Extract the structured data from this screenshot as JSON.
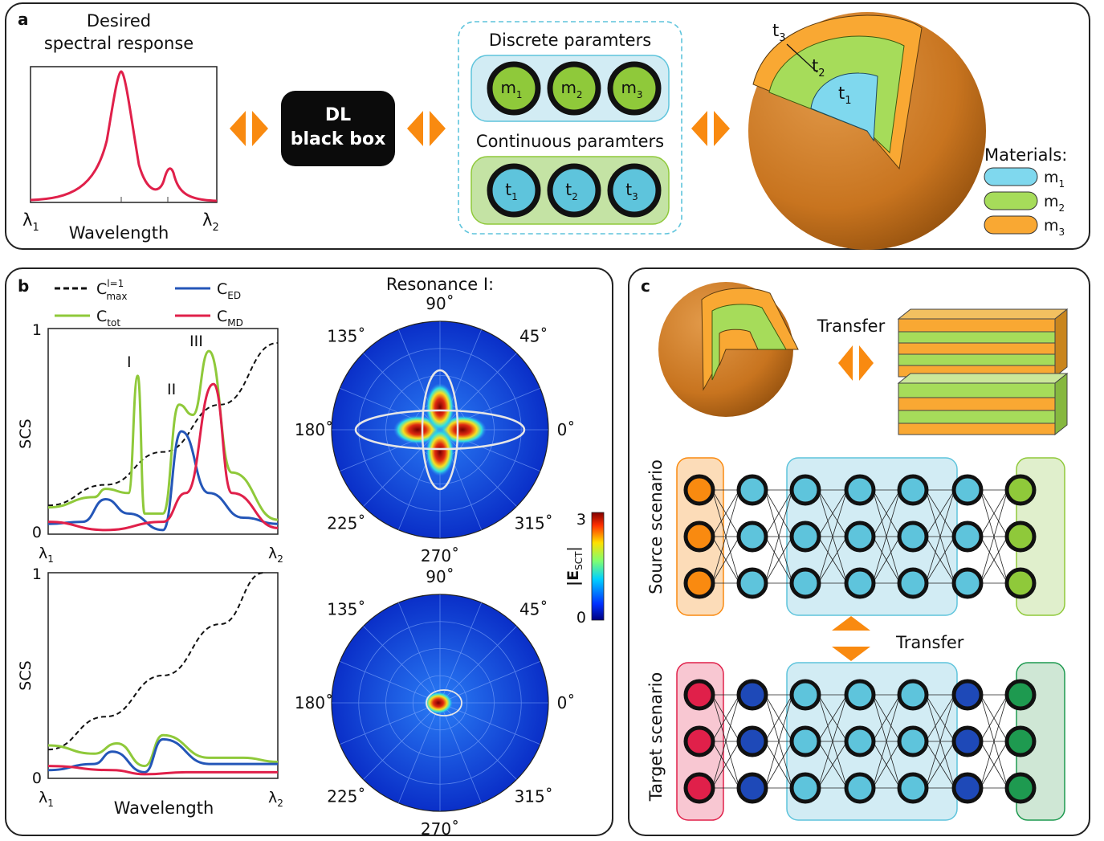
{
  "panel_a": {
    "letter": "a",
    "desired_title_1": "Desired",
    "desired_title_2": "spectral response",
    "xlabel": "Wavelength",
    "lambda_start": "λ",
    "lambda_start_sub": "1",
    "lambda_end": "λ",
    "lambda_end_sub": "2",
    "blackbox_line1": "DL",
    "blackbox_line2": "black box",
    "discrete_title": "Discrete paramters",
    "continuous_title": "Continuous paramters",
    "discrete_params": [
      {
        "base": "m",
        "sub": "1"
      },
      {
        "base": "m",
        "sub": "2"
      },
      {
        "base": "m",
        "sub": "3"
      }
    ],
    "continuous_params": [
      {
        "base": "t",
        "sub": "1"
      },
      {
        "base": "t",
        "sub": "2"
      },
      {
        "base": "t",
        "sub": "3"
      }
    ],
    "sphere_labels": [
      {
        "base": "t",
        "sub": "3"
      },
      {
        "base": "t",
        "sub": "2"
      },
      {
        "base": "t",
        "sub": "1"
      }
    ],
    "materials_title": "Materials:",
    "materials": [
      {
        "base": "m",
        "sub": "1",
        "color": "#7fd8ee"
      },
      {
        "base": "m",
        "sub": "2",
        "color": "#a6dc5a"
      },
      {
        "base": "m",
        "sub": "3",
        "color": "#f9a833"
      }
    ]
  },
  "panel_b": {
    "letter": "b",
    "legend": [
      {
        "base": "C",
        "sub": "max",
        "sup": "l=1",
        "style": "dashed",
        "color": "#111111"
      },
      {
        "base": "C",
        "sub": "ED",
        "sup": "",
        "style": "solid",
        "color": "#2456b8"
      },
      {
        "base": "C",
        "sub": "tot",
        "sup": "",
        "style": "solid",
        "color": "#8fc93a"
      },
      {
        "base": "C",
        "sub": "MD",
        "sup": "",
        "style": "solid",
        "color": "#e0204a"
      }
    ],
    "ylabel": "SCS",
    "xlabel": "Wavelength",
    "y_tick_top": "1",
    "y_tick_bottom": "0",
    "x_tick_start": "λ",
    "x_tick_start_sub": "1",
    "x_tick_end": "λ",
    "x_tick_end_sub": "2",
    "resonance_labels": [
      "I",
      "II",
      "III"
    ],
    "polar_title": "Resonance I:",
    "angles": [
      "90˚",
      "45˚",
      "0˚",
      "315˚",
      "270˚",
      "225˚",
      "180˚",
      "135˚"
    ],
    "colorbar_max": "3",
    "colorbar_min": "0",
    "colorbar_label": "|E",
    "colorbar_label_sub": "SCT",
    "colorbar_label_end": "|"
  },
  "panel_c": {
    "letter": "c",
    "transfer_top": "Transfer",
    "transfer_mid": "Transfer",
    "source_label": "Source scenario",
    "target_label": "Target scenario",
    "ellipsis": "⋮"
  },
  "colors": {
    "orange": "#f98a10",
    "red": "#e0204a",
    "teal": "#5ec4dc",
    "green": "#8fc93a",
    "dark_green": "#1e9a50",
    "dark_blue": "#1e49b8"
  },
  "chart_data": [
    {
      "type": "line",
      "title": "Desired spectral response",
      "xlabel": "Wavelength",
      "ylabel": "",
      "x": [
        "λ1",
        "λ2"
      ],
      "series": [
        {
          "values_description_free": true,
          "peaks": [
            {
              "x_frac": 0.5,
              "y": 1.0
            },
            {
              "x_frac": 0.75,
              "y": 0.25
            }
          ]
        }
      ]
    },
    {
      "type": "line",
      "xlabel": "",
      "ylabel": "SCS",
      "xlim": [
        "λ1",
        "λ2"
      ],
      "ylim": [
        0,
        1
      ],
      "annotations": [
        "I",
        "II",
        "III"
      ],
      "series": [
        {
          "name": "C_max^(l=1)",
          "points": [
            [
              0.0,
              0.14
            ],
            [
              0.25,
              0.24
            ],
            [
              0.5,
              0.4
            ],
            [
              0.75,
              0.63
            ],
            [
              1.0,
              0.93
            ]
          ]
        },
        {
          "name": "C_tot",
          "points": [
            [
              0.0,
              0.13
            ],
            [
              0.2,
              0.18
            ],
            [
              0.25,
              0.22
            ],
            [
              0.35,
              0.2
            ],
            [
              0.39,
              0.77
            ],
            [
              0.42,
              0.1
            ],
            [
              0.5,
              0.1
            ],
            [
              0.57,
              0.63
            ],
            [
              0.63,
              0.58
            ],
            [
              0.7,
              0.89
            ],
            [
              0.8,
              0.3
            ],
            [
              1.0,
              0.07
            ]
          ]
        },
        {
          "name": "C_ED",
          "points": [
            [
              0.0,
              0.05
            ],
            [
              0.15,
              0.06
            ],
            [
              0.25,
              0.17
            ],
            [
              0.35,
              0.1
            ],
            [
              0.5,
              0.02
            ],
            [
              0.58,
              0.5
            ],
            [
              0.7,
              0.2
            ],
            [
              0.85,
              0.08
            ],
            [
              1.0,
              0.05
            ]
          ]
        },
        {
          "name": "C_MD",
          "points": [
            [
              0.0,
              0.06
            ],
            [
              0.25,
              0.02
            ],
            [
              0.5,
              0.06
            ],
            [
              0.6,
              0.2
            ],
            [
              0.72,
              0.73
            ],
            [
              0.8,
              0.2
            ],
            [
              1.0,
              0.03
            ]
          ]
        }
      ]
    },
    {
      "type": "line",
      "xlabel": "Wavelength",
      "ylabel": "SCS",
      "xlim": [
        "λ1",
        "λ2"
      ],
      "ylim": [
        0,
        1
      ],
      "series": [
        {
          "name": "C_max^(l=1)",
          "points": [
            [
              0.0,
              0.14
            ],
            [
              0.25,
              0.3
            ],
            [
              0.5,
              0.5
            ],
            [
              0.75,
              0.75
            ],
            [
              0.94,
              1.0
            ]
          ]
        },
        {
          "name": "C_tot",
          "points": [
            [
              0.0,
              0.16
            ],
            [
              0.2,
              0.12
            ],
            [
              0.3,
              0.17
            ],
            [
              0.42,
              0.06
            ],
            [
              0.5,
              0.21
            ],
            [
              0.7,
              0.1
            ],
            [
              0.85,
              0.1
            ],
            [
              1.0,
              0.08
            ]
          ]
        },
        {
          "name": "C_ED",
          "points": [
            [
              0.0,
              0.04
            ],
            [
              0.2,
              0.07
            ],
            [
              0.28,
              0.13
            ],
            [
              0.42,
              0.03
            ],
            [
              0.5,
              0.19
            ],
            [
              0.7,
              0.07
            ],
            [
              1.0,
              0.07
            ]
          ]
        },
        {
          "name": "C_MD",
          "points": [
            [
              0.0,
              0.06
            ],
            [
              0.28,
              0.04
            ],
            [
              0.42,
              0.02
            ],
            [
              0.6,
              0.03
            ],
            [
              1.0,
              0.03
            ]
          ]
        }
      ]
    }
  ]
}
